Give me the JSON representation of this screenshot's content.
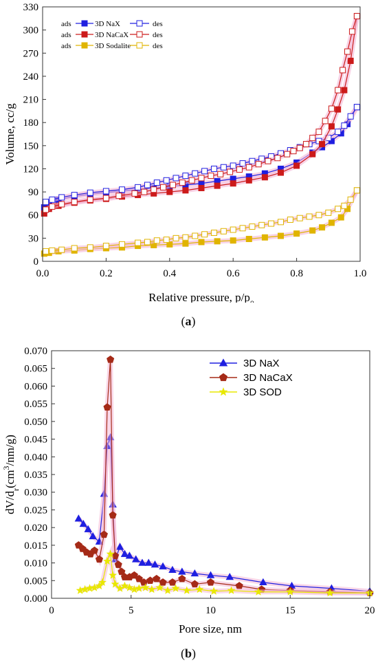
{
  "colors": {
    "nax": "#1f1fe0",
    "nacax": "#cc1a1a",
    "nacax_b": "#a52a17",
    "sod": "#e0b400",
    "sod_b": "#e8e800",
    "nax_b": "#1f1fe0",
    "glow": "#f4b6d6"
  },
  "panels": {
    "a": {
      "open": "(",
      "letter": "a",
      "close": ")"
    },
    "b": {
      "open": "(",
      "letter": "b",
      "close": ")"
    }
  },
  "chart_data": [
    {
      "type": "scatter",
      "xlabel": "Relative pressure, p/p",
      "xlabel_sub": "0",
      "ylabel": "Volume, cc/g",
      "xlim": [
        0,
        1.0
      ],
      "ylim": [
        0,
        330
      ],
      "xticks": [
        "0.0",
        "0.2",
        "0.4",
        "0.6",
        "0.8",
        "1.0"
      ],
      "yticks": [
        "0",
        "30",
        "60",
        "90",
        "120",
        "150",
        "180",
        "210",
        "240",
        "270",
        "300",
        "330"
      ],
      "legend_position": "top-left",
      "legend": [
        {
          "pre": "ads",
          "name": "3D NaX",
          "post": "des"
        },
        {
          "pre": "ads",
          "name": "3D NaCaX",
          "post": "des"
        },
        {
          "pre": "ads",
          "name": "3D Sodalite",
          "post": "des"
        }
      ],
      "series": [
        {
          "key": "nax_ads",
          "color": "nax",
          "fill": true,
          "x": [
            0.005,
            0.02,
            0.05,
            0.1,
            0.15,
            0.2,
            0.25,
            0.3,
            0.35,
            0.4,
            0.45,
            0.5,
            0.55,
            0.6,
            0.65,
            0.7,
            0.75,
            0.8,
            0.85,
            0.88,
            0.91,
            0.94,
            0.96,
            0.99
          ],
          "y": [
            70,
            76,
            80,
            84,
            87,
            89,
            91,
            93,
            95,
            97,
            99,
            101,
            104,
            107,
            110,
            114,
            120,
            128,
            141,
            148,
            156,
            166,
            178,
            200
          ]
        },
        {
          "key": "nax_des",
          "color": "nax",
          "fill": false,
          "x": [
            0.99,
            0.97,
            0.95,
            0.93,
            0.9,
            0.87,
            0.84,
            0.81,
            0.78,
            0.75,
            0.72,
            0.69,
            0.66,
            0.63,
            0.6,
            0.57,
            0.54,
            0.51,
            0.48,
            0.45,
            0.42,
            0.39,
            0.36,
            0.33,
            0.3,
            0.25,
            0.2,
            0.15,
            0.1,
            0.06,
            0.03,
            0.01
          ],
          "y": [
            200,
            188,
            176,
            168,
            160,
            156,
            152,
            148,
            144,
            140,
            136,
            133,
            130,
            127,
            124,
            122,
            120,
            117,
            114,
            111,
            108,
            105,
            102,
            99,
            96,
            93,
            91,
            89,
            86,
            83,
            80,
            77
          ]
        },
        {
          "key": "nacax_ads",
          "color": "nacax",
          "fill": true,
          "x": [
            0.005,
            0.02,
            0.05,
            0.1,
            0.15,
            0.2,
            0.25,
            0.3,
            0.35,
            0.4,
            0.45,
            0.5,
            0.55,
            0.6,
            0.65,
            0.7,
            0.75,
            0.8,
            0.85,
            0.88,
            0.91,
            0.93,
            0.95,
            0.97,
            0.99
          ],
          "y": [
            62,
            68,
            72,
            76,
            79,
            81,
            84,
            86,
            88,
            90,
            92,
            95,
            98,
            101,
            105,
            109,
            115,
            124,
            139,
            152,
            175,
            197,
            222,
            260,
            318
          ]
        },
        {
          "key": "nacax_des",
          "color": "nacax",
          "fill": false,
          "x": [
            0.99,
            0.975,
            0.96,
            0.945,
            0.93,
            0.91,
            0.89,
            0.87,
            0.85,
            0.83,
            0.81,
            0.79,
            0.77,
            0.74,
            0.71,
            0.68,
            0.65,
            0.62,
            0.59,
            0.56,
            0.53,
            0.5,
            0.47,
            0.44,
            0.41,
            0.38,
            0.35,
            0.32,
            0.29,
            0.24,
            0.2,
            0.15,
            0.1,
            0.06,
            0.03,
            0.01
          ],
          "y": [
            318,
            298,
            272,
            248,
            222,
            198,
            182,
            168,
            160,
            152,
            147,
            143,
            139,
            134,
            130,
            126,
            122,
            119,
            116,
            113,
            111,
            108,
            105,
            102,
            99,
            96,
            93,
            90,
            88,
            85,
            82,
            80,
            77,
            74,
            71,
            67
          ]
        },
        {
          "key": "sod_ads",
          "color": "sod",
          "fill": true,
          "x": [
            0.005,
            0.02,
            0.05,
            0.1,
            0.15,
            0.2,
            0.25,
            0.3,
            0.35,
            0.4,
            0.45,
            0.5,
            0.55,
            0.6,
            0.65,
            0.7,
            0.75,
            0.8,
            0.85,
            0.88,
            0.91,
            0.94,
            0.96,
            0.99
          ],
          "y": [
            10,
            11,
            13,
            14,
            16,
            17,
            18,
            20,
            21,
            22,
            23,
            25,
            26,
            27,
            29,
            31,
            33,
            36,
            40,
            44,
            50,
            57,
            68,
            92
          ]
        },
        {
          "key": "sod_des",
          "color": "sod",
          "fill": false,
          "x": [
            0.99,
            0.97,
            0.95,
            0.93,
            0.9,
            0.87,
            0.84,
            0.81,
            0.78,
            0.75,
            0.72,
            0.69,
            0.66,
            0.63,
            0.6,
            0.57,
            0.54,
            0.51,
            0.48,
            0.45,
            0.42,
            0.39,
            0.36,
            0.33,
            0.3,
            0.25,
            0.2,
            0.15,
            0.1,
            0.06,
            0.03,
            0.01
          ],
          "y": [
            92,
            80,
            72,
            68,
            63,
            60,
            58,
            56,
            54,
            51,
            49,
            47,
            45,
            43,
            41,
            39,
            37,
            35,
            33,
            31,
            30,
            28,
            27,
            25,
            24,
            22,
            20,
            18,
            17,
            15,
            14,
            13
          ]
        }
      ]
    },
    {
      "type": "line",
      "xlabel": "Pore size, nm",
      "ylabel_pre": "dV/d",
      "ylabel_sub": "r",
      "ylabel_mid": "(cm",
      "ylabel_sup": "3",
      "ylabel_post": "/nm/g)",
      "xlim": [
        0,
        20
      ],
      "ylim": [
        0,
        0.07
      ],
      "xticks": [
        "0",
        "5",
        "10",
        "15",
        "20"
      ],
      "yticks": [
        "0.000",
        "0.005",
        "0.010",
        "0.015",
        "0.020",
        "0.025",
        "0.030",
        "0.035",
        "0.040",
        "0.045",
        "0.050",
        "0.055",
        "0.060",
        "0.065",
        "0.070"
      ],
      "legend_position": "top-right",
      "series": [
        {
          "name": "3D NaX",
          "color": "nax_b",
          "marker": "triangle",
          "x": [
            1.7,
            2.0,
            2.3,
            2.6,
            3.0,
            3.3,
            3.5,
            3.7,
            3.85,
            4.0,
            4.3,
            4.6,
            4.9,
            5.3,
            5.7,
            6.1,
            6.5,
            7.0,
            7.6,
            8.2,
            9.0,
            10.0,
            11.2,
            13.3,
            15.1,
            17.6,
            20.0
          ],
          "y": [
            0.0225,
            0.021,
            0.0195,
            0.0175,
            0.016,
            0.0295,
            0.043,
            0.0455,
            0.0265,
            0.011,
            0.0145,
            0.0125,
            0.012,
            0.011,
            0.01,
            0.01,
            0.0095,
            0.009,
            0.008,
            0.0075,
            0.007,
            0.0065,
            0.006,
            0.0045,
            0.0035,
            0.0028,
            0.002
          ]
        },
        {
          "name": "3D NaCaX",
          "color": "nacax_b",
          "marker": "pentagon",
          "x": [
            1.7,
            1.95,
            2.2,
            2.45,
            2.7,
            3.0,
            3.3,
            3.5,
            3.7,
            3.85,
            4.0,
            4.2,
            4.4,
            4.6,
            4.9,
            5.2,
            5.5,
            5.8,
            6.2,
            6.6,
            7.0,
            7.6,
            8.2,
            9.0,
            10.0,
            11.8,
            13.2,
            15.0,
            17.5,
            20.0
          ],
          "y": [
            0.015,
            0.014,
            0.013,
            0.0125,
            0.0135,
            0.011,
            0.018,
            0.054,
            0.0675,
            0.0235,
            0.012,
            0.0095,
            0.0075,
            0.006,
            0.006,
            0.0065,
            0.0055,
            0.0045,
            0.005,
            0.0055,
            0.0045,
            0.0045,
            0.0055,
            0.004,
            0.0045,
            0.0035,
            0.0025,
            0.0022,
            0.0018,
            0.0015
          ]
        },
        {
          "name": "3D SOD",
          "color": "sod_b",
          "marker": "star",
          "x": [
            1.8,
            2.1,
            2.4,
            2.7,
            3.0,
            3.2,
            3.5,
            3.7,
            3.85,
            4.0,
            4.3,
            4.6,
            4.9,
            5.2,
            5.5,
            5.9,
            6.3,
            6.8,
            7.3,
            7.8,
            8.5,
            9.3,
            10.2,
            11.3,
            13.0,
            15.0,
            17.5,
            20.0
          ],
          "y": [
            0.0022,
            0.0025,
            0.0028,
            0.003,
            0.0035,
            0.0045,
            0.0105,
            0.0125,
            0.0065,
            0.004,
            0.0028,
            0.0035,
            0.003,
            0.0025,
            0.0028,
            0.003,
            0.0025,
            0.003,
            0.0022,
            0.0028,
            0.0022,
            0.0025,
            0.002,
            0.0022,
            0.0018,
            0.0018,
            0.0015,
            0.0015
          ]
        }
      ]
    }
  ]
}
